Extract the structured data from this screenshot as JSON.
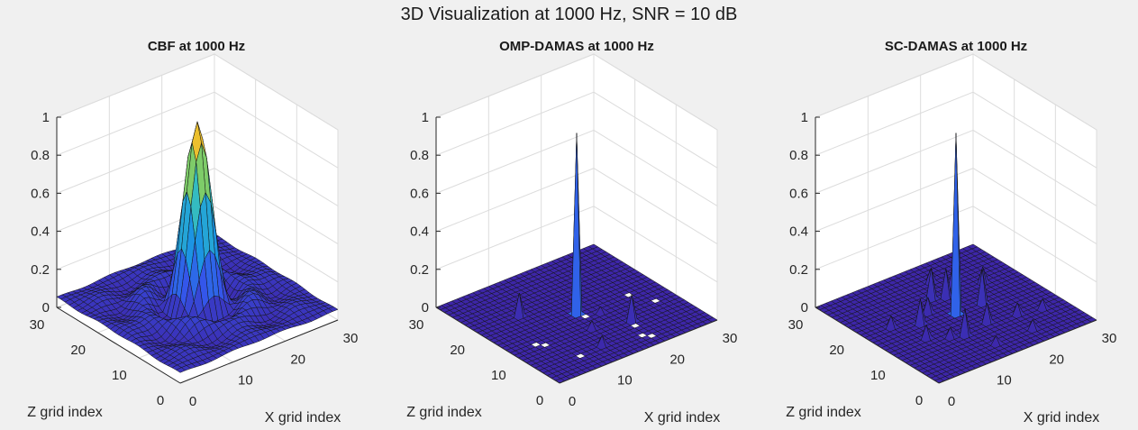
{
  "figure": {
    "title": "3D Visualization at 1000 Hz, SNR = 10 dB"
  },
  "colors": {
    "background": "#f0f0f0",
    "surface_low": "#3d26a8",
    "surface_mid": "#2db9c9",
    "surface_high": "#f9d33b",
    "grid_line": "#dcdcdc",
    "axis_line": "#262626",
    "mesh_edge": "#141414"
  },
  "chart_data": [
    {
      "type": "surface",
      "title": "CBF at 1000 Hz",
      "xlabel": "X grid index",
      "ylabel": "Z grid index",
      "zlabel": "",
      "xlim": [
        0,
        30
      ],
      "ylim": [
        0,
        30
      ],
      "zlim": [
        0,
        1
      ],
      "xticks": [
        0,
        10,
        20,
        30
      ],
      "yticks": [
        0,
        10,
        20,
        30
      ],
      "zticks": [
        0,
        0.2,
        0.4,
        0.6,
        0.8,
        1
      ],
      "zticklabels": [
        "0",
        "0.2",
        "0.4",
        "0.6",
        "0.8",
        "1"
      ],
      "colormap": "parula",
      "grid": true,
      "model": "sinc2",
      "center": [
        15,
        15
      ],
      "peak": 0.95,
      "floor": 0.05
    },
    {
      "type": "surface",
      "title": "OMP-DAMAS at 1000 Hz",
      "xlabel": "X grid index",
      "ylabel": "Z grid index",
      "zlabel": "",
      "xlim": [
        0,
        30
      ],
      "ylim": [
        0,
        30
      ],
      "zlim": [
        0,
        1
      ],
      "xticks": [
        0,
        10,
        20,
        30
      ],
      "yticks": [
        0,
        10,
        20,
        30
      ],
      "zticks": [
        0,
        0.2,
        0.4,
        0.6,
        0.8,
        1
      ],
      "zticklabels": [
        "0",
        "0.2",
        "0.4",
        "0.6",
        "0.8",
        "1"
      ],
      "colormap": "parula",
      "grid": true,
      "model": "sparse",
      "peaks": [
        {
          "x": 15,
          "z": 15,
          "value": 0.95
        },
        {
          "x": 20,
          "z": 8,
          "value": 0.14
        },
        {
          "x": 8,
          "z": 20,
          "value": 0.12
        },
        {
          "x": 12,
          "z": 5,
          "value": 0.05
        },
        {
          "x": 14,
          "z": 10,
          "value": 0.04
        },
        {
          "x": 18,
          "z": 13,
          "value": 0.03
        }
      ],
      "missing_cells": [
        [
          24,
          14
        ],
        [
          5,
          10
        ],
        [
          4,
          11
        ],
        [
          7,
          4
        ],
        [
          18,
          3
        ],
        [
          19,
          2
        ],
        [
          15,
          13
        ],
        [
          26,
          10
        ],
        [
          19,
          6
        ]
      ]
    },
    {
      "type": "surface",
      "title": "SC-DAMAS at 1000 Hz",
      "xlabel": "X grid index",
      "ylabel": "Z grid index",
      "zlabel": "",
      "xlim": [
        0,
        30
      ],
      "ylim": [
        0,
        30
      ],
      "zlim": [
        0,
        1
      ],
      "xticks": [
        0,
        10,
        20,
        30
      ],
      "yticks": [
        0,
        10,
        20,
        30
      ],
      "zticks": [
        0,
        0.2,
        0.4,
        0.6,
        0.8,
        1
      ],
      "zticklabels": [
        "0",
        "0.2",
        "0.4",
        "0.6",
        "0.8",
        "1"
      ],
      "colormap": "parula",
      "grid": true,
      "model": "sparse",
      "peaks": [
        {
          "x": 15,
          "z": 15,
          "value": 0.95
        },
        {
          "x": 20,
          "z": 15,
          "value": 0.18
        },
        {
          "x": 15,
          "z": 21,
          "value": 0.16
        },
        {
          "x": 12,
          "z": 9,
          "value": 0.14
        },
        {
          "x": 17,
          "z": 20,
          "value": 0.15
        },
        {
          "x": 20,
          "z": 22,
          "value": 0.12
        },
        {
          "x": 9,
          "z": 16,
          "value": 0.13
        },
        {
          "x": 17,
          "z": 10,
          "value": 0.1
        },
        {
          "x": 12,
          "z": 18,
          "value": 0.08
        },
        {
          "x": 22,
          "z": 9,
          "value": 0.06
        },
        {
          "x": 10,
          "z": 10,
          "value": 0.05
        },
        {
          "x": 7,
          "z": 12,
          "value": 0.07
        },
        {
          "x": 21,
          "z": 4,
          "value": 0.05
        },
        {
          "x": 5,
          "z": 18,
          "value": 0.06
        },
        {
          "x": 24,
          "z": 20,
          "value": 0.08
        },
        {
          "x": 14,
          "z": 4,
          "value": 0.04
        },
        {
          "x": 18,
          "z": 25,
          "value": 0.07
        },
        {
          "x": 26,
          "z": 8,
          "value": 0.05
        }
      ],
      "missing_cells": []
    }
  ]
}
